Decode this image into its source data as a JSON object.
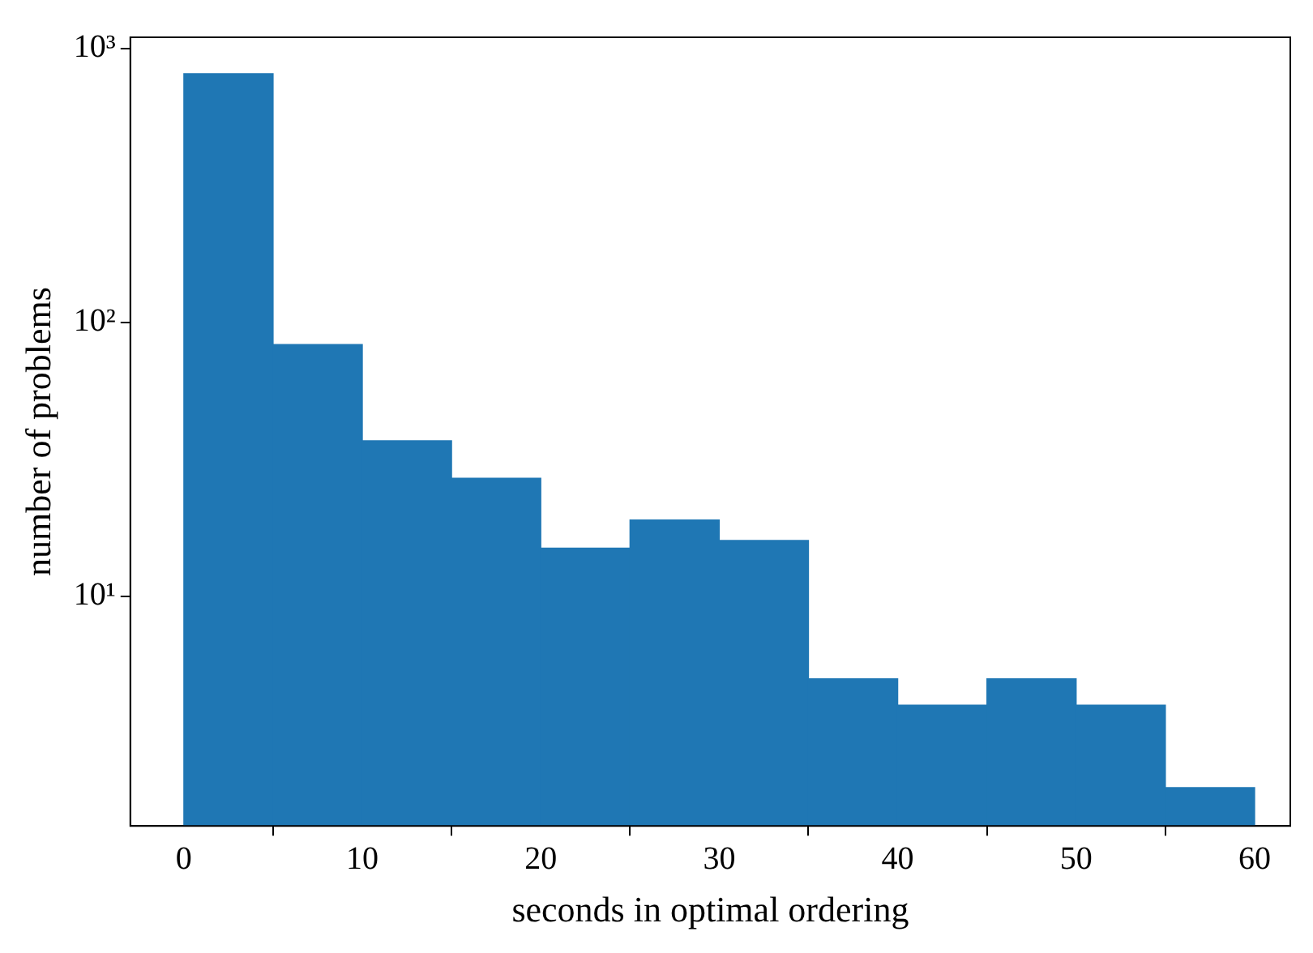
{
  "chart_data": {
    "type": "histogram",
    "xlabel": "seconds in optimal ordering",
    "ylabel": "number of problems",
    "bins": [
      0,
      5,
      10,
      15,
      20,
      25,
      30,
      35,
      40,
      45,
      50,
      55,
      60
    ],
    "values": [
      810,
      83,
      37,
      27,
      15,
      19,
      16,
      5,
      4,
      5,
      4,
      2
    ],
    "color": "#1f77b4",
    "xlim": [
      -3,
      62
    ],
    "xticks": [
      0,
      10,
      20,
      30,
      40,
      50,
      60
    ],
    "ylim": [
      1.45,
      1100
    ],
    "yticks": [
      {
        "value": 10,
        "label": "10¹"
      },
      {
        "value": 100,
        "label": "10²"
      },
      {
        "value": 1000,
        "label": "10³"
      }
    ],
    "log": true,
    "grid": false
  }
}
